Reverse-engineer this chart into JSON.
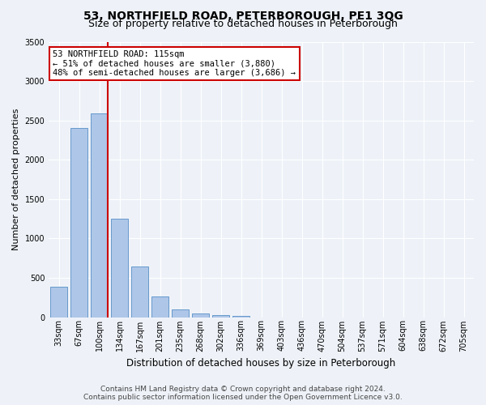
{
  "title1": "53, NORTHFIELD ROAD, PETERBOROUGH, PE1 3QG",
  "title2": "Size of property relative to detached houses in Peterborough",
  "xlabel": "Distribution of detached houses by size in Peterborough",
  "ylabel": "Number of detached properties",
  "categories": [
    "33sqm",
    "67sqm",
    "100sqm",
    "134sqm",
    "167sqm",
    "201sqm",
    "235sqm",
    "268sqm",
    "302sqm",
    "336sqm",
    "369sqm",
    "403sqm",
    "436sqm",
    "470sqm",
    "504sqm",
    "537sqm",
    "571sqm",
    "604sqm",
    "638sqm",
    "672sqm",
    "705sqm"
  ],
  "values": [
    390,
    2400,
    2590,
    1255,
    640,
    260,
    100,
    50,
    30,
    20,
    0,
    0,
    0,
    0,
    0,
    0,
    0,
    0,
    0,
    0,
    0
  ],
  "bar_color": "#aec6e8",
  "bar_edge_color": "#6699cc",
  "annotation_text_line1": "53 NORTHFIELD ROAD: 115sqm",
  "annotation_text_line2": "← 51% of detached houses are smaller (3,880)",
  "annotation_text_line3": "48% of semi-detached houses are larger (3,686) →",
  "annotation_box_color": "#ffffff",
  "annotation_box_edge": "#cc0000",
  "vline_color": "#cc0000",
  "ylim": [
    0,
    3500
  ],
  "yticks": [
    0,
    500,
    1000,
    1500,
    2000,
    2500,
    3000,
    3500
  ],
  "footer1": "Contains HM Land Registry data © Crown copyright and database right 2024.",
  "footer2": "Contains public sector information licensed under the Open Government Licence v3.0.",
  "bg_color": "#eef2f8",
  "grid_color": "#ffffff",
  "title1_fontsize": 10,
  "title2_fontsize": 9,
  "ylabel_fontsize": 8,
  "xlabel_fontsize": 8.5,
  "tick_fontsize": 7,
  "footer_fontsize": 6.5,
  "ann_fontsize": 7.5
}
